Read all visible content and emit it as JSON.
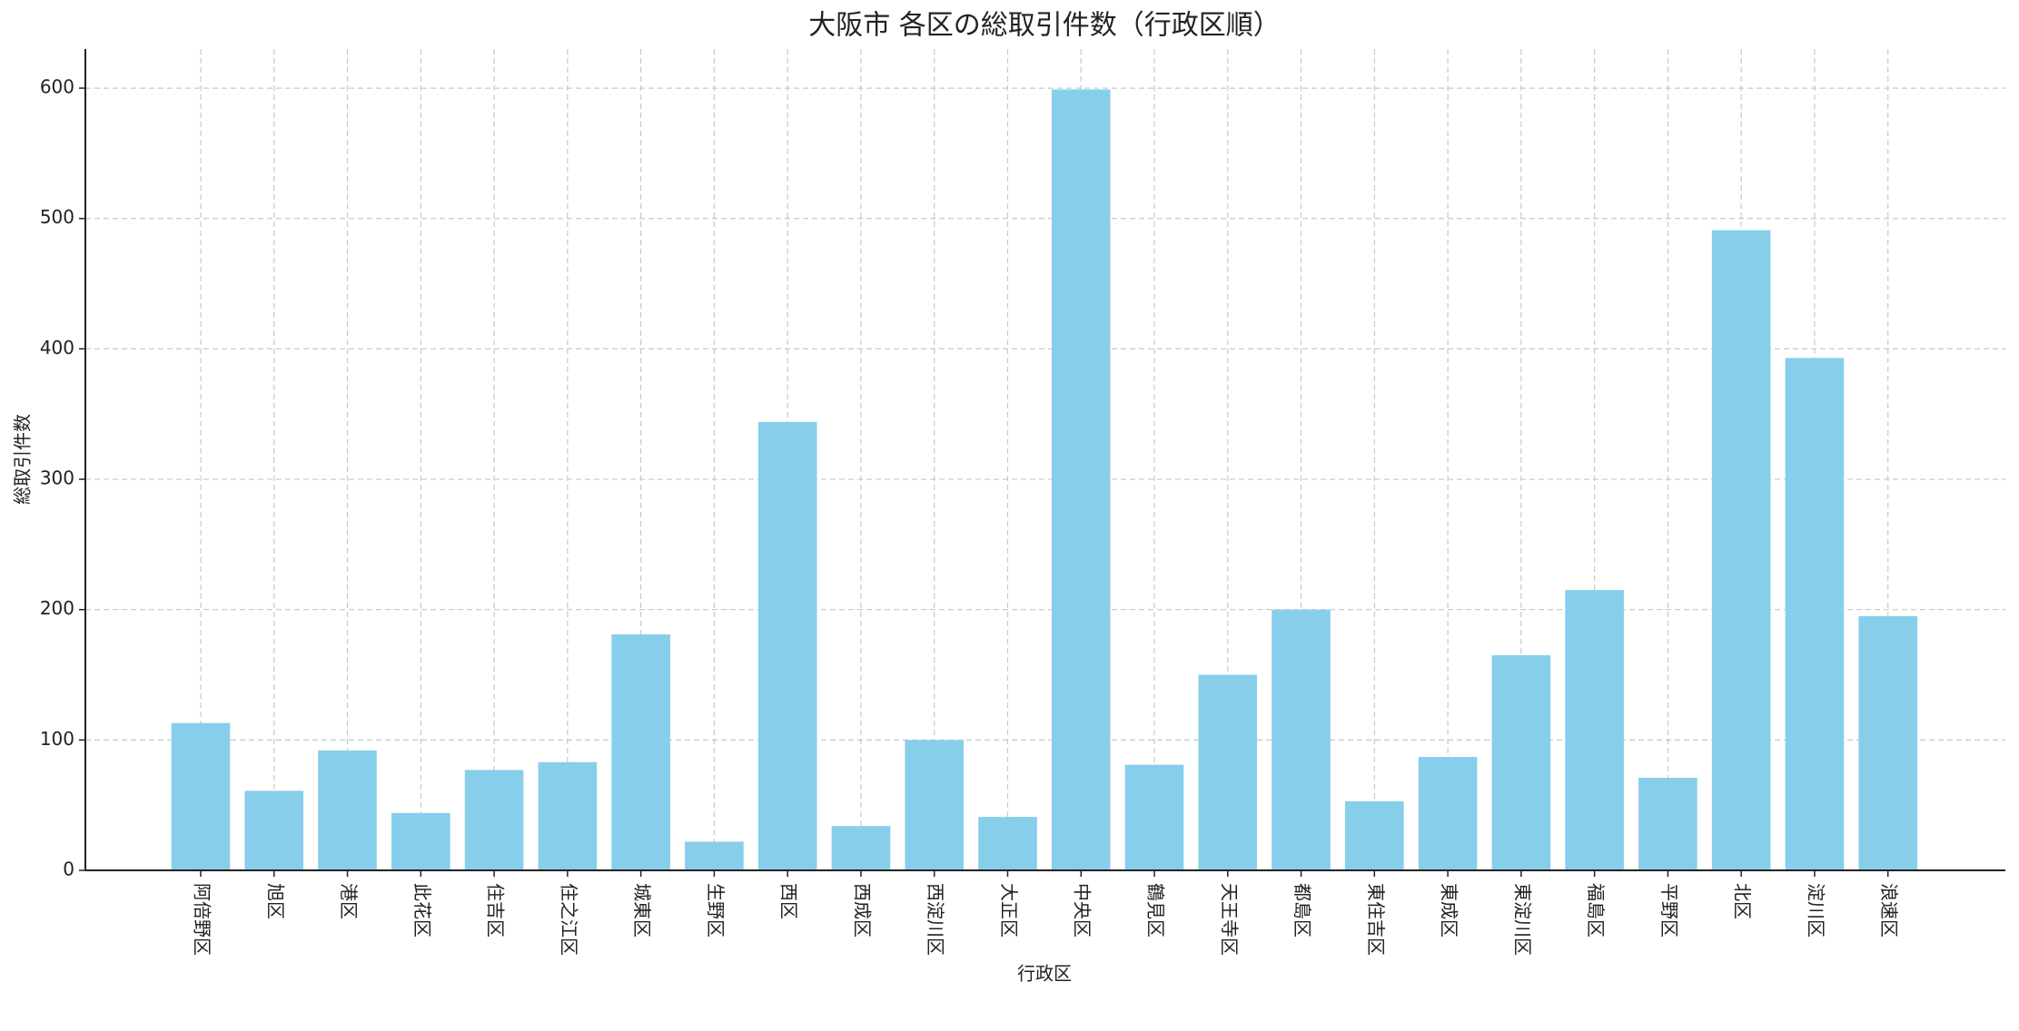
{
  "chart_data": {
    "type": "bar",
    "title": "大阪市 各区の総取引件数（行政区順）",
    "x_label": "行政区",
    "y_label": "総取引件数",
    "categories": [
      "阿倍野区",
      "旭区",
      "港区",
      "此花区",
      "住吉区",
      "住之江区",
      "城東区",
      "生野区",
      "西区",
      "西成区",
      "西淀川区",
      "大正区",
      "中央区",
      "鶴見区",
      "天王寺区",
      "都島区",
      "東住吉区",
      "東成区",
      "東淀川区",
      "福島区",
      "平野区",
      "北区",
      "淀川区",
      "浪速区"
    ],
    "values": [
      113,
      61,
      92,
      44,
      77,
      83,
      181,
      22,
      344,
      34,
      100,
      41,
      599,
      81,
      150,
      200,
      53,
      87,
      165,
      215,
      71,
      491,
      393,
      195
    ],
    "color": "#87ceeb",
    "ylim": [
      0,
      630
    ],
    "yticks": [
      0,
      100,
      200,
      300,
      400,
      500,
      600
    ],
    "grid": true
  }
}
